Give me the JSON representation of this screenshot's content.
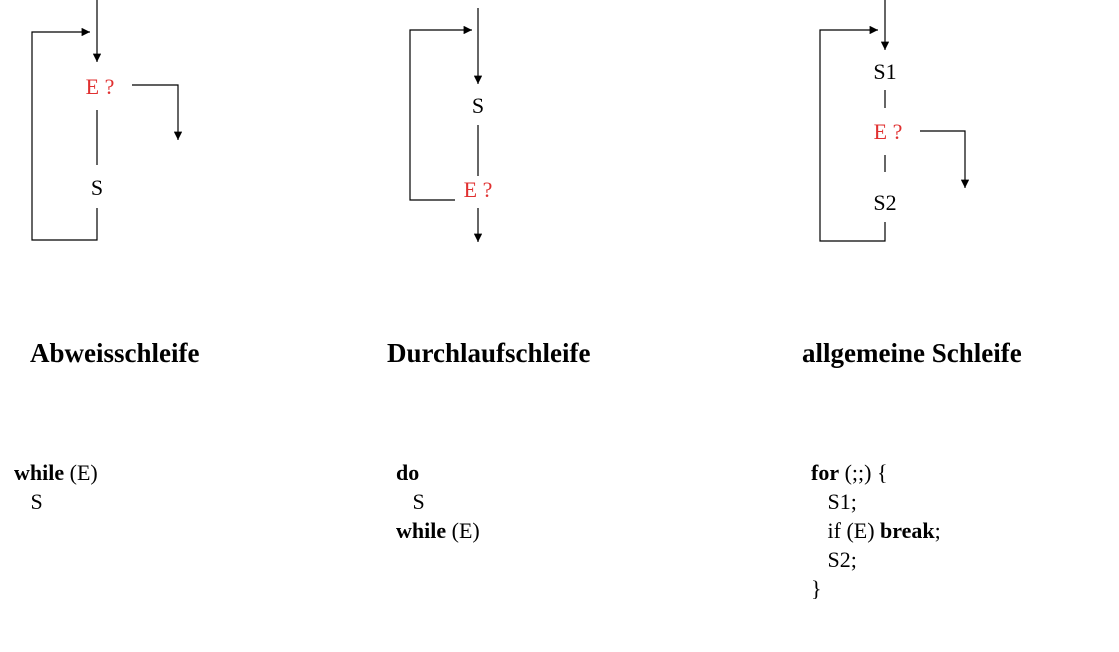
{
  "columns": [
    {
      "diagram": {
        "condition": "E ?",
        "statements": [
          "S"
        ]
      },
      "title": "Abweisschleife",
      "code": [
        [
          {
            "b": "while"
          },
          {
            "t": " (E)"
          }
        ],
        [
          {
            "t": "   S"
          }
        ]
      ]
    },
    {
      "diagram": {
        "condition": "E ?",
        "statements": [
          "S"
        ]
      },
      "title": "Durchlaufschleife",
      "code": [
        [
          {
            "b": "do"
          }
        ],
        [
          {
            "t": "   S"
          }
        ],
        [
          {
            "b": "while"
          },
          {
            "t": " (E)"
          }
        ]
      ]
    },
    {
      "diagram": {
        "condition": "E ?",
        "statements": [
          "S1",
          "S2"
        ]
      },
      "title": "allgemeine Schleife",
      "code": [
        [
          {
            "b": "for"
          },
          {
            "t": " (;;) {"
          }
        ],
        [
          {
            "t": "   S1;"
          }
        ],
        [
          {
            "t": "   if (E) "
          },
          {
            "b": "break"
          },
          {
            "t": ";"
          }
        ],
        [
          {
            "t": "   S2;"
          }
        ],
        [
          {
            "t": "}"
          }
        ]
      ]
    }
  ]
}
